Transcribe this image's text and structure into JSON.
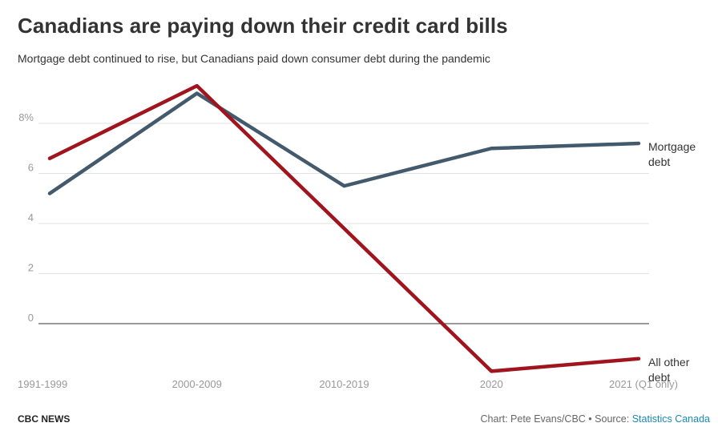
{
  "header": {
    "title": "Canadians are paying down their credit card bills",
    "subtitle": "Mortgage debt continued to rise, but Canadians paid down consumer debt during the pandemic"
  },
  "footer": {
    "brand": "CBC NEWS",
    "credit": "Chart: Pete Evans/CBC",
    "separator": " • ",
    "source_label": "Source: ",
    "source_link": "Statistics Canada"
  },
  "colors": {
    "mortgage": "#435a6d",
    "other": "#a0141e",
    "grid": "#e2e2e2",
    "zero_line": "#333333",
    "tick_text": "#999999",
    "label_text": "#333333",
    "link": "#1a8ab5"
  },
  "chart_data": {
    "type": "line",
    "categories": [
      "1991-1999",
      "2000-2009",
      "2010-2019",
      "2020",
      "2021 (Q1 only)"
    ],
    "y_ticks": [
      {
        "value": 0,
        "label": "0"
      },
      {
        "value": 2,
        "label": "2"
      },
      {
        "value": 4,
        "label": "4"
      },
      {
        "value": 6,
        "label": "6"
      },
      {
        "value": 8,
        "label": "8%"
      }
    ],
    "ylim": [
      -2,
      10
    ],
    "grid": true,
    "series": [
      {
        "name": "Mortgage debt",
        "label_lines": [
          "Mortgage",
          "debt"
        ],
        "color": "#435a6d",
        "values": [
          5.2,
          9.2,
          5.5,
          7.0,
          7.2
        ]
      },
      {
        "name": "All other debt",
        "label_lines": [
          "All other",
          "debt"
        ],
        "color": "#a0141e",
        "values": [
          6.6,
          9.5,
          3.8,
          -1.9,
          -1.4
        ]
      }
    ]
  }
}
